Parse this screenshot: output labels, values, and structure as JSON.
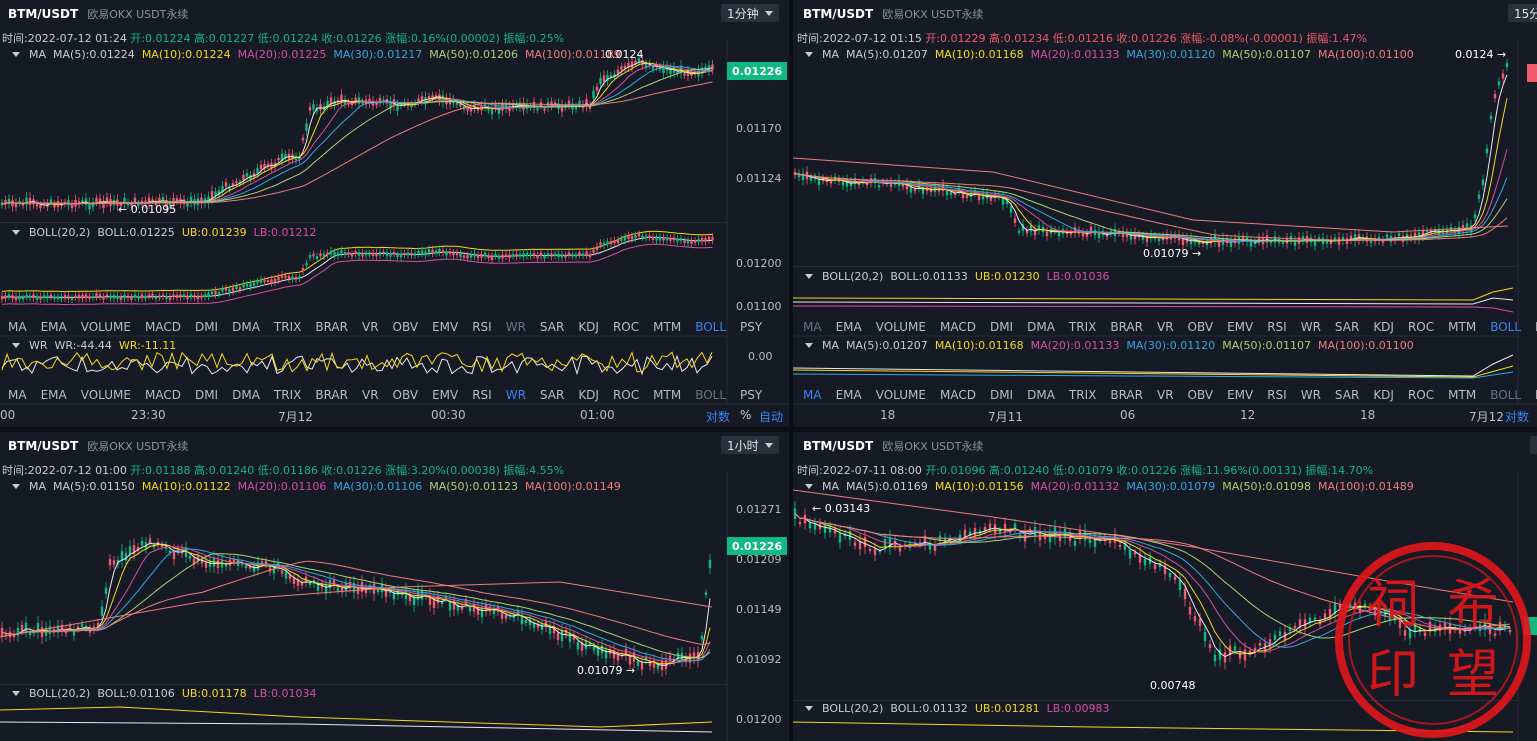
{
  "panels": [
    {
      "symbol": "BTM/USDT",
      "exchange": "欧易OKX USDT永续",
      "timeframe": "1分钟",
      "ohlc": {
        "time": "时间:2022-07-12 01:24",
        "open": "开:0.01224",
        "high": "高:0.01227",
        "low": "低:0.01224",
        "close": "收:0.01226",
        "change": "涨幅:0.16%(0.00002)",
        "amp": "振幅:0.25%"
      },
      "ma": {
        "label": "MA",
        "ma5": "MA(5):0.01224",
        "ma10": "MA(10):0.01224",
        "ma20": "MA(20):0.01225",
        "ma30": "MA(30):0.01217",
        "ma50": "MA(50):0.01206",
        "ma100": "MA(100):0.01189"
      },
      "boll": {
        "label": "BOLL(20,2)",
        "mid": "BOLL:0.01225",
        "ub": "UB:0.01239",
        "lb": "LB:0.01212"
      },
      "wr": {
        "label": "WR",
        "v1": "WR:-44.44",
        "v2": "WR:-11.11"
      },
      "price_tag": "0.01226",
      "yaxis": [
        "0.01170",
        "0.01124"
      ],
      "boll_yaxis": [
        "0.01200",
        "0.01100"
      ],
      "wr_yaxis": [
        "0.00"
      ],
      "ann_high": "0.0124",
      "ann_low": "← 0.01095",
      "xaxis": [
        "00",
        "23:30",
        "7月12",
        "00:30",
        "01:00"
      ],
      "bottom": {
        "log": "对数",
        "pct": "%",
        "auto": "自动"
      }
    },
    {
      "symbol": "BTM/USDT",
      "exchange": "欧易OKX USDT永续",
      "timeframe": "15分",
      "ohlc": {
        "time": "时间:2022-07-12 01:15",
        "open": "开:0.01229",
        "high": "高:0.01234",
        "low": "低:0.01216",
        "close": "收:0.01226",
        "change": "涨幅:-0.08%(-0.00001)",
        "amp": "振幅:1.47%"
      },
      "ma": {
        "label": "MA",
        "ma5": "MA(5):0.01207",
        "ma10": "MA(10):0.01168",
        "ma20": "MA(20):0.01133",
        "ma30": "MA(30):0.01120",
        "ma50": "MA(50):0.01107",
        "ma100": "MA(100):0.01100"
      },
      "boll": {
        "label": "BOLL(20,2)",
        "mid": "BOLL:0.01133",
        "ub": "UB:0.01230",
        "lb": "LB:0.01036"
      },
      "ma2": {
        "label": "MA",
        "ma5": "MA(5):0.01207",
        "ma10": "MA(10):0.01168",
        "ma20": "MA(20):0.01133",
        "ma30": "MA(30):0.01120",
        "ma50": "MA(50):0.01107",
        "ma100": "MA(100):0.01100"
      },
      "ann_high": "0.0124 →",
      "ann_low": "0.01079 →",
      "xaxis": [
        "18",
        "7月11",
        "06",
        "12",
        "18",
        "7月12"
      ],
      "bottom": {
        "log": "对数"
      }
    },
    {
      "symbol": "BTM/USDT",
      "exchange": "欧易OKX USDT永续",
      "timeframe": "1小时",
      "ohlc": {
        "time": "时间:2022-07-12 01:00",
        "open": "开:0.01188",
        "high": "高:0.01240",
        "low": "低:0.01186",
        "close": "收:0.01226",
        "change": "涨幅:3.20%(0.00038)",
        "amp": "振幅:4.55%"
      },
      "ma": {
        "label": "MA",
        "ma5": "MA(5):0.01150",
        "ma10": "MA(10):0.01122",
        "ma20": "MA(20):0.01106",
        "ma30": "MA(30):0.01106",
        "ma50": "MA(50):0.01123",
        "ma100": "MA(100):0.01149"
      },
      "boll": {
        "label": "BOLL(20,2)",
        "mid": "BOLL:0.01106",
        "ub": "UB:0.01178",
        "lb": "LB:0.01034"
      },
      "price_tag": "0.01226",
      "yaxis": [
        "0.01271",
        "0.01209",
        "0.01149",
        "0.01092"
      ],
      "boll_yaxis": [
        "0.01200"
      ],
      "ann_low": "0.01079 →"
    },
    {
      "symbol": "BTM/USDT",
      "exchange": "欧易OKX USDT永续",
      "ohlc": {
        "time": "时间:2022-07-11 08:00",
        "open": "开:0.01096",
        "high": "高:0.01240",
        "low": "低:0.01079",
        "close": "收:0.01226",
        "change": "涨幅:11.96%(0.00131)",
        "amp": "振幅:14.70%"
      },
      "ma": {
        "label": "MA",
        "ma5": "MA(5):0.01169",
        "ma10": "MA(10):0.01156",
        "ma20": "MA(20):0.01132",
        "ma30": "MA(30):0.01079",
        "ma50": "MA(50):0.01098",
        "ma100": "MA(100):0.01489"
      },
      "boll": {
        "label": "BOLL(20,2)",
        "mid": "BOLL:0.01132",
        "ub": "UB:0.01281",
        "lb": "LB:0.00983"
      },
      "ann_high": "← 0.03143",
      "ann_low": "0.00748"
    }
  ],
  "tabs_main": [
    "MA",
    "EMA",
    "VOLUME",
    "MACD",
    "DMI",
    "DMA",
    "TRIX",
    "BRAR",
    "VR",
    "OBV",
    "EMV",
    "RSI",
    "WR",
    "SAR",
    "KDJ",
    "ROC",
    "MTM",
    "BOLL",
    "PSY"
  ],
  "seal": {
    "chars": [
      "祠",
      "希",
      "印",
      "望"
    ]
  },
  "colors": {
    "up": "#10b981",
    "down": "#ef5a6f",
    "ma5": "#e8e8ee",
    "ma10": "#f5d91a",
    "ma20": "#d84ea4",
    "ma30": "#32a8e0",
    "ma50": "#a9d171",
    "ma100": "#ee7b7d",
    "accent": "#3b82f6",
    "seal": "#e0161b"
  }
}
